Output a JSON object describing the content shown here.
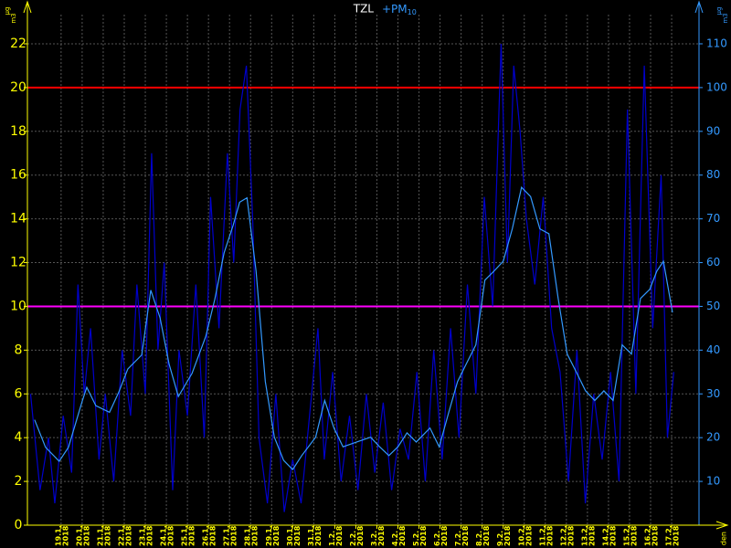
{
  "chart_data": {
    "type": "line",
    "title": "TZL",
    "legend_label": {
      "text": "+PM",
      "subscript": "10",
      "color": "#3399ff"
    },
    "y_unit": {
      "top": "µg",
      "bottom": "m3"
    },
    "y2_unit": {
      "top": "µg",
      "bottom": "m3"
    },
    "xlabel": "den",
    "xlim": [
      -1.6,
      30.3
    ],
    "xticks": [
      {
        "value": 0,
        "label": "19.1."
      },
      {
        "value": 1,
        "label": "20.1."
      },
      {
        "value": 2,
        "label": "21.1."
      },
      {
        "value": 3,
        "label": "22.1."
      },
      {
        "value": 4,
        "label": "23.1."
      },
      {
        "value": 5,
        "label": "24.1."
      },
      {
        "value": 6,
        "label": "25.1."
      },
      {
        "value": 7,
        "label": "26.1."
      },
      {
        "value": 8,
        "label": "27.1."
      },
      {
        "value": 9,
        "label": "28.1."
      },
      {
        "value": 10,
        "label": "29.1."
      },
      {
        "value": 11,
        "label": "30.1."
      },
      {
        "value": 12,
        "label": "31.1."
      },
      {
        "value": 13,
        "label": "1.2."
      },
      {
        "value": 14,
        "label": "2.2."
      },
      {
        "value": 15,
        "label": "3.2."
      },
      {
        "value": 16,
        "label": "4.2."
      },
      {
        "value": 17,
        "label": "5.2."
      },
      {
        "value": 18,
        "label": "6.2."
      },
      {
        "value": 19,
        "label": "7.2."
      },
      {
        "value": 20,
        "label": "8.2."
      },
      {
        "value": 21,
        "label": "9.2."
      },
      {
        "value": 22,
        "label": "10.2."
      },
      {
        "value": 23,
        "label": "11.2."
      },
      {
        "value": 24,
        "label": "12.2."
      },
      {
        "value": 25,
        "label": "13.2."
      },
      {
        "value": 26,
        "label": "14.2."
      },
      {
        "value": 27,
        "label": "15.2."
      },
      {
        "value": 28,
        "label": "16.2."
      },
      {
        "value": 29,
        "label": "17.2."
      }
    ],
    "xtick_year": "2018",
    "ylim": [
      0,
      22.5
    ],
    "yticks": [
      0,
      2,
      4,
      6,
      8,
      10,
      12,
      14,
      16,
      18,
      20,
      22
    ],
    "y2lim": [
      0,
      112.5
    ],
    "y2ticks": [
      10,
      20,
      30,
      40,
      50,
      60,
      70,
      80,
      90,
      100,
      110
    ],
    "grid": true,
    "axis_color": "#ffff00",
    "axis2_color": "#3399ff",
    "hlines": [
      {
        "value": 20,
        "color": "#ff0000"
      },
      {
        "value": 10,
        "color": "#ff00ff"
      }
    ],
    "series": [
      {
        "color": "#0000cc",
        "axis": "y2",
        "x": [
          -1.45,
          -1.0,
          -0.6,
          -0.3,
          0.1,
          0.5,
          0.8,
          1.1,
          1.4,
          1.8,
          2.1,
          2.5,
          2.9,
          3.3,
          3.6,
          4.0,
          4.3,
          4.6,
          4.9,
          5.3,
          5.6,
          6.0,
          6.4,
          6.8,
          7.1,
          7.5,
          7.9,
          8.2,
          8.5,
          8.8,
          9.1,
          9.4,
          9.8,
          10.2,
          10.6,
          11.0,
          11.4,
          11.8,
          12.2,
          12.5,
          12.9,
          13.3,
          13.7,
          14.1,
          14.5,
          14.9,
          15.3,
          15.7,
          16.1,
          16.5,
          16.9,
          17.3,
          17.7,
          18.1,
          18.5,
          18.9,
          19.3,
          19.7,
          20.1,
          20.5,
          20.9,
          21.2,
          21.5,
          21.8,
          22.1,
          22.5,
          22.9,
          23.3,
          23.7,
          24.1,
          24.5,
          24.9,
          25.3,
          25.7,
          26.1,
          26.5,
          26.9,
          27.3,
          27.7,
          28.1,
          28.5,
          28.8,
          29.1
        ],
        "values": [
          30,
          8,
          20,
          5,
          25,
          12,
          55,
          30,
          45,
          15,
          30,
          10,
          40,
          25,
          55,
          30,
          85,
          40,
          60,
          8,
          40,
          25,
          55,
          20,
          75,
          45,
          85,
          60,
          95,
          105,
          70,
          20,
          5,
          30,
          3,
          15,
          5,
          25,
          45,
          15,
          35,
          10,
          25,
          8,
          30,
          12,
          28,
          8,
          22,
          15,
          35,
          10,
          40,
          15,
          45,
          20,
          55,
          30,
          75,
          50,
          110,
          60,
          105,
          90,
          70,
          55,
          75,
          45,
          35,
          10,
          40,
          5,
          30,
          15,
          35,
          10,
          95,
          30,
          105,
          45,
          80,
          20,
          35
        ]
      },
      {
        "color": "#3399ff",
        "axis": "y2",
        "x": [
          -1.26,
          -0.74,
          -0.09,
          0.35,
          1.0,
          1.22,
          1.65,
          2.3,
          2.74,
          3.17,
          3.83,
          4.26,
          4.7,
          5.13,
          5.57,
          6.22,
          6.87,
          7.3,
          7.74,
          8.17,
          8.48,
          8.83,
          9.26,
          9.7,
          10.13,
          10.57,
          11.0,
          11.43,
          12.09,
          12.52,
          12.96,
          13.39,
          14.04,
          14.7,
          15.13,
          15.57,
          16.0,
          16.43,
          16.87,
          17.52,
          17.96,
          18.39,
          18.83,
          19.26,
          19.7,
          20.13,
          20.57,
          21.0,
          21.43,
          21.87,
          22.3,
          22.74,
          23.17,
          23.61,
          24.04,
          24.48,
          24.91,
          25.35,
          25.78,
          26.22,
          26.65,
          27.09,
          27.52,
          27.96,
          28.3,
          28.61,
          29.04
        ],
        "values": [
          24.1,
          17.8,
          14.6,
          17.8,
          28.3,
          31.5,
          27.3,
          25.8,
          30.4,
          35.7,
          38.9,
          53.7,
          47.4,
          36.8,
          29.4,
          34.7,
          43.1,
          51.6,
          62.2,
          68.5,
          73.8,
          74.8,
          58.1,
          32.8,
          20.1,
          14.8,
          12.7,
          15.9,
          20.1,
          28.5,
          22.2,
          17.9,
          19.0,
          20.1,
          17.9,
          15.9,
          17.9,
          21.1,
          19.0,
          22.2,
          17.9,
          25.4,
          32.8,
          37.0,
          41.2,
          56.0,
          58.1,
          60.3,
          67.7,
          77.2,
          75.1,
          67.7,
          66.6,
          51.8,
          39.1,
          34.9,
          30.7,
          28.5,
          30.7,
          28.5,
          41.2,
          39.1,
          51.8,
          53.9,
          58.1,
          60.3,
          48.6
        ]
      }
    ]
  }
}
